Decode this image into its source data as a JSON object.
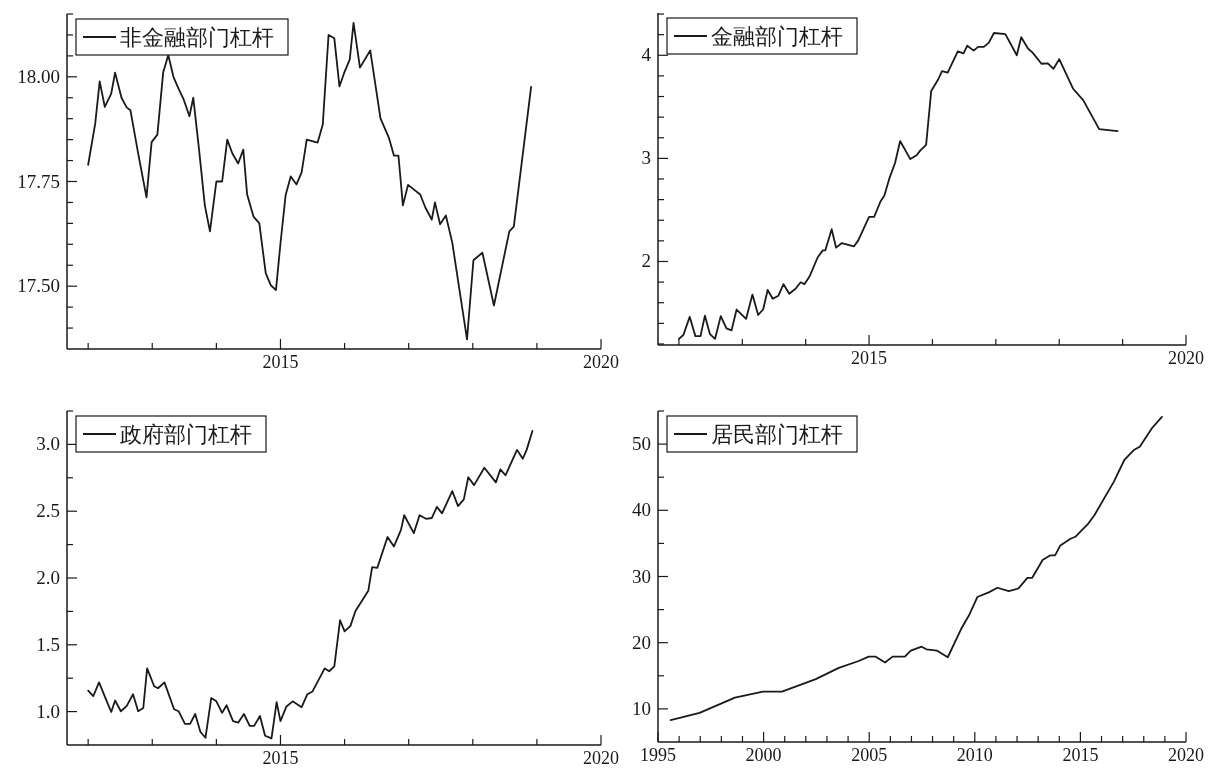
{
  "chart_data": [
    {
      "type": "line",
      "legend": "top left",
      "marker": "none",
      "line_style": "solid",
      "xlim": [
        2011.67,
        2020
      ],
      "ylim": [
        17.35,
        18.15
      ],
      "xticks": [
        {
          "value": 2012,
          "label": null
        },
        {
          "value": 2013,
          "label": null
        },
        {
          "value": 2014,
          "label": null
        },
        2015,
        {
          "value": 2016,
          "label": null
        },
        {
          "value": 2017,
          "label": null
        },
        {
          "value": 2018,
          "label": null
        },
        {
          "value": 2019,
          "label": null
        },
        2020
      ],
      "yticks": [
        {
          "value": 17.4,
          "label": null
        },
        {
          "value": 17.45,
          "label": null
        },
        {
          "value": 17.5,
          "label": "17.50"
        },
        {
          "value": 17.55,
          "label": null
        },
        {
          "value": 17.6,
          "label": null
        },
        {
          "value": 17.65,
          "label": null
        },
        {
          "value": 17.7,
          "label": null
        },
        {
          "value": 17.75,
          "label": "17.75"
        },
        {
          "value": 17.8,
          "label": null
        },
        {
          "value": 17.85,
          "label": null
        },
        {
          "value": 17.9,
          "label": null
        },
        {
          "value": 17.95,
          "label": null
        },
        {
          "value": 18,
          "label": "18.00"
        },
        {
          "value": 18.05,
          "label": null
        },
        {
          "value": 18.1,
          "label": null
        },
        {
          "value": 18.15,
          "label": null
        }
      ],
      "x": [
        2012.0,
        2012.11,
        2012.18,
        2012.26,
        2012.36,
        2012.42,
        2012.52,
        2012.6,
        2012.66,
        2012.78,
        2012.91,
        2012.99,
        2013.08,
        2013.17,
        2013.25,
        2013.33,
        2013.41,
        2013.49,
        2013.58,
        2013.64,
        2013.73,
        2013.82,
        2013.9,
        2014.0,
        2014.09,
        2014.17,
        2014.25,
        2014.34,
        2014.42,
        2014.48,
        2014.58,
        2014.67,
        2014.77,
        2014.85,
        2014.93,
        2015.0,
        2015.08,
        2015.16,
        2015.25,
        2015.33,
        2015.41,
        2015.58,
        2015.66,
        2015.75,
        2015.84,
        2015.92,
        2016.0,
        2016.08,
        2016.14,
        2016.24,
        2016.4,
        2016.56,
        2016.69,
        2016.77,
        2016.84,
        2016.91,
        2016.99,
        2017.18,
        2017.26,
        2017.36,
        2017.41,
        2017.49,
        2017.58,
        2017.68,
        2017.91,
        2018.01,
        2018.15,
        2018.33,
        2018.57,
        2018.64,
        2018.91
      ],
      "series": [
        {
          "name": "非金融部门杠杆",
          "color": "#1a1a1a",
          "values": [
            17.79,
            17.888,
            17.989,
            17.928,
            17.96,
            18.01,
            17.95,
            17.927,
            17.92,
            17.817,
            17.712,
            17.844,
            17.862,
            18.01,
            18.052,
            18.0,
            17.972,
            17.946,
            17.906,
            17.95,
            17.826,
            17.693,
            17.631,
            17.75,
            17.75,
            17.85,
            17.817,
            17.793,
            17.826,
            17.719,
            17.666,
            17.65,
            17.531,
            17.502,
            17.491,
            17.602,
            17.717,
            17.762,
            17.743,
            17.772,
            17.85,
            17.843,
            17.886,
            18.1,
            18.092,
            17.977,
            18.012,
            18.041,
            18.129,
            18.022,
            18.063,
            17.901,
            17.855,
            17.812,
            17.812,
            17.693,
            17.742,
            17.719,
            17.688,
            17.659,
            17.7,
            17.648,
            17.669,
            17.604,
            17.373,
            17.562,
            17.58,
            17.454,
            17.631,
            17.642,
            17.976
          ]
        }
      ]
    },
    {
      "type": "line",
      "legend": "top left",
      "marker": "none",
      "line_style": "solid",
      "xlim": [
        2011.67,
        2020
      ],
      "ylim": [
        1.19,
        4.41
      ],
      "xticks": [
        {
          "value": 2012,
          "label": null
        },
        {
          "value": 2013,
          "label": null
        },
        {
          "value": 2014,
          "label": null
        },
        2015,
        {
          "value": 2016,
          "label": null
        },
        {
          "value": 2017,
          "label": null
        },
        {
          "value": 2018,
          "label": null
        },
        {
          "value": 2019,
          "label": null
        },
        2020
      ],
      "yticks": [
        {
          "value": 1.2,
          "label": null
        },
        {
          "value": 1.4,
          "label": null
        },
        {
          "value": 1.6,
          "label": null
        },
        {
          "value": 1.8,
          "label": null
        },
        2,
        {
          "value": 2.2,
          "label": null
        },
        {
          "value": 2.4,
          "label": null
        },
        {
          "value": 2.6,
          "label": null
        },
        {
          "value": 2.8,
          "label": null
        },
        3,
        {
          "value": 3.2,
          "label": null
        },
        {
          "value": 3.4,
          "label": null
        },
        {
          "value": 3.6,
          "label": null
        },
        {
          "value": 3.8,
          "label": null
        },
        4,
        {
          "value": 4.2,
          "label": null
        },
        {
          "value": 4.4,
          "label": null
        }
      ],
      "x": [
        2012.0,
        2012.07,
        2012.17,
        2012.26,
        2012.34,
        2012.41,
        2012.49,
        2012.57,
        2012.66,
        2012.75,
        2012.83,
        2012.91,
        2013.06,
        2013.16,
        2013.25,
        2013.33,
        2013.4,
        2013.48,
        2013.57,
        2013.65,
        2013.74,
        2013.84,
        2013.92,
        2013.98,
        2014.06,
        2014.19,
        2014.27,
        2014.31,
        2014.41,
        2014.48,
        2014.57,
        2014.76,
        2014.83,
        2015.0,
        2015.08,
        2015.18,
        2015.24,
        2015.32,
        2015.41,
        2015.49,
        2015.65,
        2015.75,
        2015.81,
        2015.9,
        2015.98,
        2016.09,
        2016.15,
        2016.24,
        2016.4,
        2016.49,
        2016.55,
        2016.65,
        2016.72,
        2016.81,
        2016.89,
        2016.97,
        2017.15,
        2017.33,
        2017.4,
        2017.51,
        2017.58,
        2017.72,
        2017.82,
        2017.91,
        2018.0,
        2018.22,
        2018.38,
        2018.63,
        2018.92
      ],
      "series": [
        {
          "name": "金融部门杠杆",
          "color": "#1a1a1a",
          "values": [
            1.25,
            1.287,
            1.463,
            1.276,
            1.276,
            1.474,
            1.295,
            1.25,
            1.47,
            1.351,
            1.332,
            1.534,
            1.444,
            1.679,
            1.481,
            1.537,
            1.724,
            1.638,
            1.668,
            1.78,
            1.687,
            1.735,
            1.799,
            1.78,
            1.854,
            2.041,
            2.108,
            2.108,
            2.313,
            2.134,
            2.179,
            2.146,
            2.205,
            2.433,
            2.433,
            2.582,
            2.638,
            2.806,
            2.955,
            3.168,
            2.993,
            3.03,
            3.078,
            3.131,
            3.653,
            3.765,
            3.847,
            3.832,
            4.037,
            4.019,
            4.093,
            4.045,
            4.082,
            4.082,
            4.123,
            4.216,
            4.205,
            4.0,
            4.175,
            4.063,
            4.026,
            3.918,
            3.922,
            3.869,
            3.963,
            3.675,
            3.563,
            3.284,
            3.265
          ]
        }
      ]
    },
    {
      "type": "line",
      "legend": "top left",
      "marker": "none",
      "line_style": "solid",
      "xlim": [
        2011.67,
        2020
      ],
      "ylim": [
        0.75,
        3.25
      ],
      "xticks": [
        {
          "value": 2012,
          "label": null
        },
        {
          "value": 2013,
          "label": null
        },
        {
          "value": 2014,
          "label": null
        },
        2015,
        {
          "value": 2016,
          "label": null
        },
        {
          "value": 2017,
          "label": null
        },
        {
          "value": 2018,
          "label": null
        },
        {
          "value": 2019,
          "label": null
        },
        2020
      ],
      "yticks": [
        {
          "value": 1,
          "label": "1.0"
        },
        {
          "value": 1.25,
          "label": null
        },
        {
          "value": 1.5,
          "label": "1.5"
        },
        {
          "value": 1.75,
          "label": null
        },
        {
          "value": 2,
          "label": "2.0"
        },
        {
          "value": 2.25,
          "label": null
        },
        {
          "value": 2.5,
          "label": "2.5"
        },
        {
          "value": 2.75,
          "label": null
        },
        {
          "value": 3,
          "label": "3.0"
        },
        {
          "value": 3.25,
          "label": null
        }
      ],
      "x": [
        2012.0,
        2012.08,
        2012.17,
        2012.27,
        2012.36,
        2012.42,
        2012.51,
        2012.6,
        2012.7,
        2012.78,
        2012.86,
        2012.92,
        2013.03,
        2013.09,
        2013.19,
        2013.34,
        2013.41,
        2013.51,
        2013.59,
        2013.67,
        2013.75,
        2013.83,
        2013.92,
        2014.0,
        2014.09,
        2014.16,
        2014.26,
        2014.34,
        2014.43,
        2014.52,
        2014.59,
        2014.68,
        2014.76,
        2014.86,
        2014.94,
        2015.0,
        2015.09,
        2015.19,
        2015.33,
        2015.42,
        2015.5,
        2015.69,
        2015.76,
        2015.84,
        2015.93,
        2016.0,
        2016.09,
        2016.17,
        2016.37,
        2016.43,
        2016.51,
        2016.67,
        2016.77,
        2016.88,
        2016.93,
        2017.08,
        2017.17,
        2017.27,
        2017.36,
        2017.44,
        2017.52,
        2017.68,
        2017.77,
        2017.86,
        2017.93,
        2018.02,
        2018.18,
        2018.36,
        2018.43,
        2018.51,
        2018.69,
        2018.78,
        2018.84,
        2018.93
      ],
      "series": [
        {
          "name": "政府部门杠杆",
          "color": "#1a1a1a",
          "values": [
            1.157,
            1.116,
            1.219,
            1.101,
            0.997,
            1.083,
            1.003,
            1.041,
            1.13,
            1.003,
            1.027,
            1.323,
            1.19,
            1.175,
            1.219,
            1.018,
            1.003,
            0.908,
            0.908,
            0.982,
            0.849,
            0.804,
            1.101,
            1.077,
            0.991,
            1.047,
            0.929,
            0.917,
            0.982,
            0.893,
            0.893,
            0.967,
            0.819,
            0.799,
            1.071,
            0.929,
            1.036,
            1.077,
            1.033,
            1.13,
            1.151,
            1.323,
            1.302,
            1.338,
            1.684,
            1.601,
            1.64,
            1.753,
            1.904,
            2.081,
            2.076,
            2.307,
            2.236,
            2.36,
            2.47,
            2.336,
            2.47,
            2.443,
            2.449,
            2.532,
            2.484,
            2.65,
            2.538,
            2.588,
            2.754,
            2.695,
            2.825,
            2.716,
            2.813,
            2.769,
            2.959,
            2.893,
            2.959,
            3.101
          ]
        }
      ]
    },
    {
      "type": "line",
      "legend": "top left",
      "marker": "none",
      "line_style": "solid",
      "xlim": [
        1995,
        2020
      ],
      "ylim": [
        5,
        55
      ],
      "xticks": [
        1995,
        {
          "value": 1996,
          "label": null
        },
        {
          "value": 1997,
          "label": null
        },
        {
          "value": 1998,
          "label": null
        },
        {
          "value": 1999,
          "label": null
        },
        2000,
        {
          "value": 2001,
          "label": null
        },
        {
          "value": 2002,
          "label": null
        },
        {
          "value": 2003,
          "label": null
        },
        {
          "value": 2004,
          "label": null
        },
        2005,
        {
          "value": 2006,
          "label": null
        },
        {
          "value": 2007,
          "label": null
        },
        {
          "value": 2008,
          "label": null
        },
        {
          "value": 2009,
          "label": null
        },
        2010,
        {
          "value": 2011,
          "label": null
        },
        {
          "value": 2012,
          "label": null
        },
        {
          "value": 2013,
          "label": null
        },
        {
          "value": 2014,
          "label": null
        },
        2015,
        {
          "value": 2016,
          "label": null
        },
        {
          "value": 2017,
          "label": null
        },
        {
          "value": 2018,
          "label": null
        },
        {
          "value": 2019,
          "label": null
        },
        2020
      ],
      "yticks": [
        10,
        {
          "value": 15,
          "label": null
        },
        20,
        {
          "value": 25,
          "label": null
        },
        30,
        {
          "value": 35,
          "label": null
        },
        40,
        {
          "value": 45,
          "label": null
        },
        50,
        {
          "value": 55,
          "label": null
        }
      ],
      "x": [
        1995.6,
        1996.97,
        1998.64,
        1999.97,
        2000.87,
        2002.47,
        2003.56,
        2004.47,
        2004.98,
        2005.29,
        2005.75,
        2006.11,
        2006.69,
        2006.97,
        2007.48,
        2007.71,
        2008.22,
        2008.72,
        2009.39,
        2009.72,
        2010.12,
        2010.66,
        2011.07,
        2011.61,
        2012.07,
        2012.49,
        2012.72,
        2013.21,
        2013.58,
        2013.8,
        2014.05,
        2014.53,
        2014.76,
        2015.35,
        2015.67,
        2016.58,
        2017.08,
        2017.53,
        2017.81,
        2018.41,
        2018.86
      ],
      "series": [
        {
          "name": "居民部门杠杆",
          "color": "#1a1a1a",
          "values": [
            8.3,
            9.4,
            11.7,
            12.6,
            12.6,
            14.5,
            16.2,
            17.2,
            17.9,
            17.9,
            17.0,
            17.9,
            17.9,
            18.8,
            19.4,
            19.0,
            18.8,
            17.8,
            22.3,
            24.1,
            26.9,
            27.6,
            28.3,
            27.8,
            28.2,
            29.8,
            29.8,
            32.5,
            33.2,
            33.2,
            34.7,
            35.7,
            36.0,
            37.9,
            39.3,
            44.3,
            47.6,
            49.1,
            49.6,
            52.5,
            54.1
          ]
        }
      ]
    }
  ]
}
